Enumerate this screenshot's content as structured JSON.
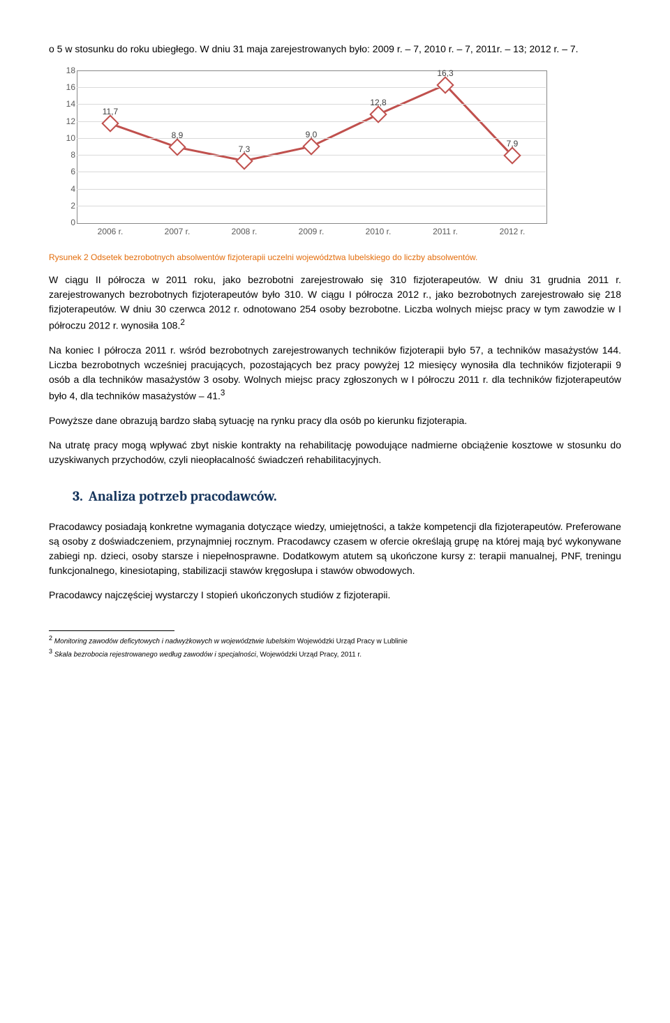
{
  "intro": "o 5 w stosunku do roku ubiegłego. W dniu 31 maja zarejestrowanych było: 2009 r. – 7, 2010 r. – 7, 2011r. – 13; 2012 r. – 7.",
  "chart": {
    "type": "line",
    "marker_border_color": "#c0504d",
    "marker_fill": "#ffffff",
    "line_color": "#c0504d",
    "line_width": 3,
    "grid_color": "#d9d9d9",
    "border_color": "#888888",
    "ylim": [
      0,
      18
    ],
    "ytick_step": 2,
    "yticks": [
      0,
      2,
      4,
      6,
      8,
      10,
      12,
      14,
      16,
      18
    ],
    "categories": [
      "2006 r.",
      "2007 r.",
      "2008 r.",
      "2009 r.",
      "2010 r.",
      "2011 r.",
      "2012 r."
    ],
    "values": [
      11.7,
      8.9,
      7.3,
      9.0,
      12.8,
      16.3,
      7.9
    ],
    "labels": [
      "11,7",
      "8,9",
      "7,3",
      "9,0",
      "12,8",
      "16,3",
      "7,9"
    ],
    "label_fontsize": 12,
    "axis_text_color": "#595959"
  },
  "caption": "Rysunek 2 Odsetek bezrobotnych absolwentów fizjoterapii uczelni województwa lubelskiego do liczby absolwentów.",
  "para1": "W ciągu II półrocza w 2011 roku, jako bezrobotni zarejestrowało się 310 fizjoterapeutów. W dniu 31 grudnia 2011 r. zarejestrowanych bezrobotnych fizjoterapeutów było 310. W ciągu I półrocza 2012 r., jako bezrobotnych zarejestrowało się 218 fizjoterapeutów. W dniu 30 czerwca 2012 r. odnotowano 254 osoby bezrobotne. Liczba wolnych miejsc pracy w tym zawodzie w I półroczu 2012 r. wynosiła 108.",
  "para1_sup": "2",
  "para2": "Na koniec I półrocza 2011 r. wśród bezrobotnych zarejestrowanych techników fizjoterapii było 57, a techników masażystów 144. Liczba bezrobotnych wcześniej pracujących, pozostających bez pracy powyżej 12 miesięcy wynosiła dla techników fizjoterapii 9 osób a dla techników masażystów 3 osoby. Wolnych miejsc pracy zgłoszonych w I półroczu 2011 r. dla techników fizjoterapeutów było 4, dla techników masażystów – 41.",
  "para2_sup": "3",
  "para3": "Powyższe dane obrazują bardzo słabą sytuację na rynku pracy dla osób po kierunku fizjoterapia.",
  "para4": "Na utratę pracy mogą wpływać zbyt niskie kontrakty na rehabilitację powodujące nadmierne obciążenie kosztowe w stosunku do uzyskiwanych przychodów, czyli nieopłacalność świadczeń rehabilitacyjnych.",
  "section": {
    "num": "3.",
    "title": "Analiza potrzeb pracodawców."
  },
  "para5": "Pracodawcy posiadają konkretne wymagania dotyczące wiedzy, umiejętności, a także kompetencji dla fizjoterapeutów. Preferowane są osoby z doświadczeniem, przynajmniej rocznym. Pracodawcy czasem w ofercie określają grupę na której mają być wykonywane zabiegi np. dzieci, osoby starsze i niepełnosprawne. Dodatkowym atutem są ukończone kursy z: terapii manualnej, PNF, treningu funkcjonalnego, kinesiotaping, stabilizacji stawów kręgosłupa i stawów obwodowych.",
  "para6": "Pracodawcy najczęściej wystarczy I stopień ukończonych studiów z fizjoterapii.",
  "footnotes": {
    "f2": {
      "n": "2",
      "italic": "Monitoring zawodów deficytowych i nadwyżkowych w województwie lubelskim",
      "rest": " Wojewódzki Urząd Pracy w Lublinie"
    },
    "f3": {
      "n": "3",
      "italic": "Skala bezrobocia rejestrowanego według zawodów i specjalności",
      "rest": ", Wojewódzki Urząd Pracy, 2011 r."
    }
  }
}
